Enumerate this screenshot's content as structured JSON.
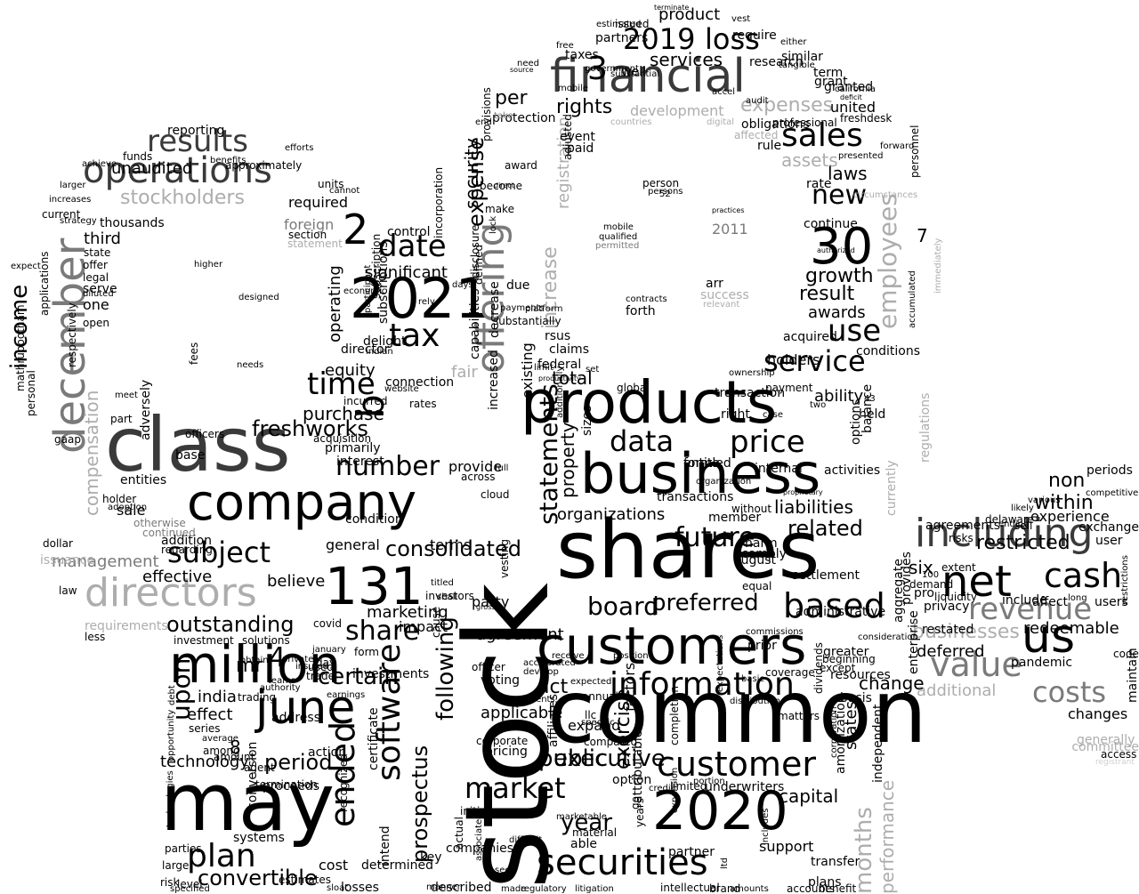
{
  "cloud": {
    "words": [
      "stock",
      "common",
      "shares",
      "may",
      "customers",
      "products",
      "business",
      "class",
      "million",
      "company",
      "securities",
      "2020",
      "2021",
      "financial",
      "offering",
      "december",
      "june",
      "131",
      "including",
      "net",
      "revenue",
      "us",
      "operations",
      "directors",
      "customer",
      "information",
      "based",
      "value",
      "costs",
      "cash",
      "software",
      "ended",
      "market",
      "plan",
      "30",
      "sales",
      "2019",
      "loss",
      "results",
      "2",
      "stockholders",
      "income",
      "date",
      "tax",
      "time",
      "price",
      "data",
      "future",
      "service",
      "use",
      "employees",
      "new",
      "subject",
      "number",
      "consolidated",
      "statements",
      "board",
      "share",
      "preferred",
      "outstanding",
      "upon",
      "mr",
      "4",
      "certain",
      "period",
      "year",
      "executive",
      "public",
      "convertible",
      "fair",
      "freshworks",
      "following",
      "prospectus",
      "months",
      "performance",
      "capital",
      "8",
      "7",
      "3",
      "b",
      "compensation",
      "rights",
      "restricted",
      "within",
      "non",
      "related",
      "liabilities",
      "businesses",
      "redeemable",
      "deferred",
      "additional",
      "changes",
      "six",
      "expenses",
      "assets",
      "services",
      "laws",
      "growth",
      "result",
      "awards",
      "research",
      "product",
      "united",
      "freshdesk",
      "granted",
      "per",
      "expense",
      "registration",
      "increase",
      "security",
      "management",
      "effective",
      "believe",
      "marketing",
      "india",
      "effect",
      "series",
      "technology",
      "amount",
      "systems",
      "agreement",
      "act",
      "voting",
      "officer",
      "applicable",
      "corporate",
      "pricing",
      "expand",
      "annual",
      "option",
      "limited",
      "underwriters",
      "support",
      "transfer",
      "plans",
      "accounts",
      "benefit",
      "amortization",
      "dividends",
      "corporation",
      "states",
      "independent",
      "change",
      "basis",
      "total",
      "property",
      "exercise",
      "factors",
      "completion",
      "organizations",
      "terms",
      "investors",
      "party",
      "impact",
      "vesting",
      "provide",
      "across",
      "cloud",
      "general",
      "condition",
      "purchase",
      "equity",
      "interest",
      "primarily",
      "acquisition",
      "sale",
      "addition",
      "regarding",
      "issuance",
      "law",
      "operating",
      "significant",
      "holders",
      "options",
      "ability",
      "held",
      "balance",
      "payment",
      "transaction",
      "right",
      "entitled",
      "transactions",
      "internal",
      "activities",
      "experience",
      "exchange",
      "user",
      "agreements",
      "delaware",
      "risks",
      "privacy",
      "include",
      "pandemic",
      "users",
      "code",
      "maintain",
      "generally",
      "access",
      "committee",
      "registrant",
      "third",
      "state",
      "offer",
      "legal",
      "serve",
      "diluted",
      "open",
      "one",
      "respectively",
      "adversely",
      "part",
      "meet",
      "entities",
      "gaap",
      "holder",
      "adoption",
      "base",
      "officers",
      "continued",
      "otherwise",
      "requirements",
      "less",
      "dollar",
      "personal",
      "mathrubootham",
      "expect",
      "applications",
      "current",
      "increases",
      "larger",
      "achieve",
      "funds",
      "reporting",
      "unaudited",
      "thousands",
      "approximately",
      "foreign",
      "section",
      "statement",
      "required",
      "units",
      "cannot",
      "efforts",
      "benefits",
      "strategy",
      "control",
      "incorporation",
      "due",
      "rsus",
      "claims",
      "federal",
      "paid",
      "event",
      "adjusted",
      "award",
      "become",
      "make",
      "protection",
      "platform",
      "payments",
      "existing",
      "increased",
      "continue",
      "rate",
      "grant",
      "california",
      "deficit",
      "term",
      "either",
      "similar",
      "tangible",
      "require",
      "vest",
      "terminate",
      "issued",
      "estimated",
      "partners",
      "taxes",
      "free",
      "government",
      "well",
      "accel",
      "audit",
      "substantial",
      "professional",
      "rule",
      "obligations",
      "affected",
      "development",
      "countries",
      "digital",
      "forward",
      "personnel",
      "circumstances",
      "presented",
      "conditions",
      "accumulated",
      "immediately",
      "authorized",
      "acquired",
      "2011",
      "mobile",
      "qualified",
      "permitted",
      "contracts",
      "forth",
      "success",
      "relevant",
      "arr",
      "person",
      "persons",
      "practices",
      "52",
      "ownership",
      "43",
      "two",
      "case",
      "forma",
      "without",
      "member",
      "organization",
      "proprietary",
      "harm",
      "comply",
      "equal",
      "august",
      "settlement",
      "administrative",
      "aggregate",
      "provides",
      "currently",
      "regulations",
      "restated",
      "liquidity",
      "pro",
      "demand",
      "100",
      "extent",
      "affect",
      "long",
      "restrictions",
      "ending",
      "sell",
      "likely",
      "competitive",
      "periods",
      "various",
      "enterprise",
      "greater",
      "beginning",
      "except",
      "resources",
      "consideration",
      "expectations",
      "commissions",
      "prior",
      "coverage",
      "matters",
      "distribution",
      "basic",
      "cost",
      "estimates",
      "recognized",
      "determined",
      "intend",
      "losses",
      "sloat",
      "level",
      "specified",
      "risk",
      "large",
      "parties",
      "technologies",
      "opportunity",
      "debt",
      "proceeds",
      "average",
      "among",
      "agent",
      "conversion",
      "termination",
      "action",
      "address",
      "trading",
      "investment",
      "solutions",
      "form",
      "investments",
      "covid",
      "january",
      "day",
      "used",
      "trade",
      "teams",
      "authority",
      "obtain",
      "private",
      "earnings",
      "insured",
      "key",
      "manner",
      "actual",
      "associated",
      "initial",
      "difficult",
      "made",
      "described",
      "see",
      "regulatory",
      "litigation",
      "intellectual",
      "brand",
      "amounts",
      "ltd",
      "includes",
      "partner",
      "expansion",
      "credit",
      "go",
      "portion",
      "attributable",
      "years",
      "material",
      "marketable",
      "able",
      "companies",
      "compared",
      "specific",
      "certificate",
      "affiliates",
      "llc",
      "events",
      "develop",
      "accelerated",
      "receive",
      "expected",
      "position",
      "sizes",
      "additionally",
      "global",
      "set",
      "limit",
      "productivity",
      "fees",
      "needs",
      "designed",
      "higher",
      "economic",
      "participant",
      "rely",
      "delight",
      "indian",
      "website",
      "connection",
      "rates",
      "incurred",
      "director",
      "subscriptions",
      "subscription",
      "full",
      "gross",
      "shall",
      "titled",
      "cause",
      "provisions",
      "capabilities",
      "defined",
      "decrease",
      "disclosure",
      "lock",
      "substantially",
      "days",
      "direct",
      "take",
      "end",
      "source",
      "need",
      "mobile"
    ]
  }
}
